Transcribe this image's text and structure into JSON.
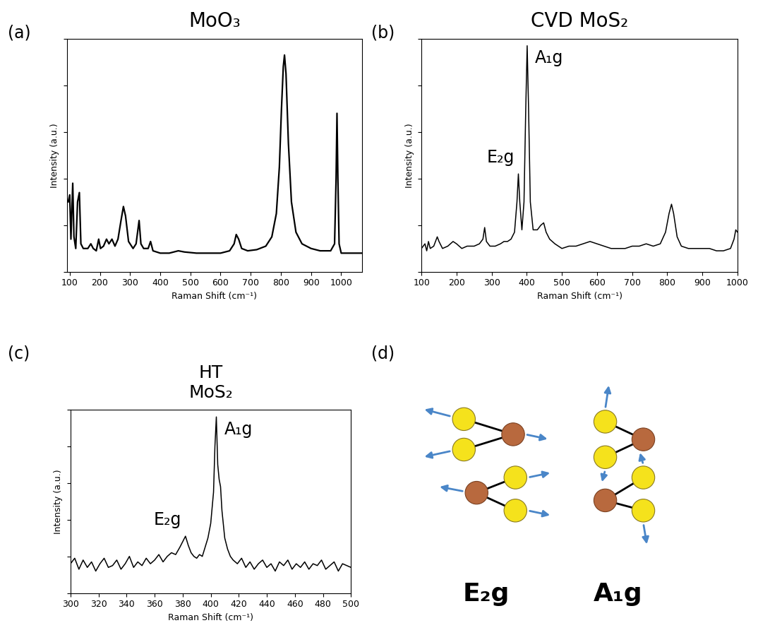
{
  "chart_data": [
    {
      "type": "line",
      "panel": "(a)",
      "title": "MoO₃",
      "x_label": "Raman Shift (cm⁻¹)",
      "y_label": "Intensity (a.u.)",
      "x": [
        95,
        100,
        104,
        110,
        114,
        120,
        126,
        132,
        137,
        145,
        160,
        170,
        178,
        188,
        196,
        202,
        212,
        222,
        230,
        240,
        250,
        260,
        270,
        278,
        285,
        295,
        310,
        320,
        330,
        336,
        345,
        360,
        368,
        376,
        400,
        430,
        460,
        480,
        520,
        560,
        600,
        630,
        645,
        652,
        660,
        670,
        690,
        720,
        750,
        770,
        785,
        795,
        802,
        808,
        812,
        817,
        825,
        835,
        850,
        870,
        900,
        930,
        950,
        965,
        978,
        983,
        986,
        989,
        993,
        1000,
        1030,
        1060,
        1070
      ],
      "values": [
        30,
        33,
        14,
        38,
        15,
        10,
        30,
        34,
        12,
        10,
        10,
        12,
        10,
        9,
        14,
        10,
        11,
        14,
        12,
        14,
        11,
        14,
        22,
        28,
        24,
        13,
        10,
        12,
        22,
        12,
        10,
        10,
        13,
        9,
        8,
        8,
        9,
        8.5,
        8,
        8,
        8,
        9,
        12,
        16,
        14,
        10,
        9,
        9.5,
        11,
        15,
        25,
        45,
        70,
        88,
        93,
        85,
        55,
        30,
        17,
        12,
        10,
        9,
        9,
        9,
        12,
        40,
        68,
        40,
        12,
        8,
        8,
        8,
        8
      ],
      "color": "#000000",
      "xlim": [
        90,
        1070
      ],
      "xticks": [
        100,
        200,
        300,
        400,
        500,
        600,
        700,
        800,
        900,
        1000
      ],
      "ylim": [
        0,
        100
      ],
      "yticks": [
        0,
        20,
        40,
        60,
        80,
        100
      ],
      "tick_labels": "x",
      "annotations": []
    },
    {
      "type": "line",
      "panel": "(b)",
      "title": "CVD MoS₂",
      "x_label": "Raman Shift (cm⁻¹)",
      "y_label": "Intensity (a.u.)",
      "x": [
        100,
        110,
        115,
        120,
        125,
        135,
        145,
        150,
        160,
        175,
        190,
        200,
        215,
        230,
        250,
        265,
        275,
        280,
        285,
        295,
        310,
        325,
        335,
        345,
        355,
        365,
        372,
        376,
        380,
        386,
        392,
        397,
        401,
        405,
        410,
        418,
        430,
        440,
        448,
        455,
        465,
        480,
        500,
        520,
        540,
        560,
        580,
        600,
        620,
        640,
        660,
        680,
        700,
        720,
        740,
        760,
        780,
        795,
        805,
        812,
        818,
        828,
        840,
        860,
        880,
        900,
        920,
        940,
        960,
        980,
        990,
        995,
        1000
      ],
      "values": [
        10,
        12,
        9,
        13,
        10,
        11,
        15,
        13,
        10,
        11,
        13,
        12,
        10,
        11,
        11,
        12,
        14,
        19,
        13,
        11,
        11,
        12,
        13,
        13,
        14,
        17,
        30,
        42,
        30,
        18,
        30,
        70,
        97,
        70,
        30,
        18,
        18,
        20,
        21,
        17,
        14,
        12,
        10,
        11,
        11,
        12,
        13,
        12,
        11,
        10,
        10,
        10,
        11,
        11,
        12,
        11,
        12,
        17,
        25,
        29,
        25,
        15,
        11,
        10,
        10,
        10,
        10,
        9,
        9,
        10,
        14,
        18,
        17
      ],
      "color": "#000000",
      "xlim": [
        100,
        1000
      ],
      "xticks": [
        100,
        200,
        300,
        400,
        500,
        600,
        700,
        800,
        900,
        1000
      ],
      "ylim": [
        0,
        100
      ],
      "yticks": [
        0,
        20,
        40,
        60,
        80,
        100
      ],
      "tick_labels": "x",
      "annotations": [
        {
          "text": "E₂g",
          "x": 376,
          "y": 42
        },
        {
          "text": "A₁g",
          "x": 401,
          "y": 97
        }
      ]
    },
    {
      "type": "line",
      "panel": "(c)",
      "title": "HT\nMoS₂",
      "x_label": "Raman Shift (cm⁻¹)",
      "y_label": "Intensity (a.u.)",
      "x": [
        300,
        303,
        306,
        309,
        312,
        315,
        318,
        321,
        324,
        327,
        330,
        333,
        336,
        339,
        342,
        345,
        348,
        351,
        354,
        357,
        360,
        363,
        366,
        369,
        372,
        375,
        378,
        380,
        382,
        384,
        386,
        388,
        390,
        392,
        394,
        396,
        398,
        400,
        402,
        403,
        404,
        405,
        406,
        407,
        408,
        410,
        412,
        414,
        416,
        419,
        422,
        425,
        428,
        431,
        434,
        437,
        440,
        443,
        446,
        449,
        452,
        455,
        458,
        461,
        464,
        467,
        470,
        473,
        476,
        479,
        482,
        485,
        488,
        491,
        494,
        497,
        500
      ],
      "values": [
        16,
        19,
        13,
        18,
        14,
        17,
        12,
        16,
        19,
        14,
        15,
        18,
        13,
        16,
        20,
        14,
        17,
        15,
        19,
        16,
        18,
        21,
        17,
        20,
        22,
        21,
        25,
        28,
        31,
        26,
        22,
        20,
        19,
        21,
        20,
        25,
        30,
        38,
        55,
        80,
        96,
        70,
        62,
        58,
        45,
        30,
        24,
        20,
        18,
        16,
        19,
        14,
        17,
        13,
        16,
        18,
        14,
        16,
        12,
        17,
        15,
        18,
        13,
        16,
        14,
        17,
        13,
        16,
        15,
        18,
        13,
        15,
        17,
        12,
        16,
        15,
        14
      ],
      "color": "#000000",
      "xlim": [
        300,
        500
      ],
      "xticks": [
        300,
        320,
        340,
        360,
        380,
        400,
        420,
        440,
        460,
        480,
        500
      ],
      "ylim": [
        0,
        100
      ],
      "yticks": [
        0,
        20,
        40,
        60,
        80,
        100
      ],
      "tick_labels": "x",
      "annotations": [
        {
          "text": "E₂g",
          "x": 382,
          "y": 31
        },
        {
          "text": "A₁g",
          "x": 404,
          "y": 96
        }
      ]
    }
  ],
  "diagram": {
    "panel": "(d)",
    "modes": [
      "E₂g",
      "A₁g"
    ]
  }
}
